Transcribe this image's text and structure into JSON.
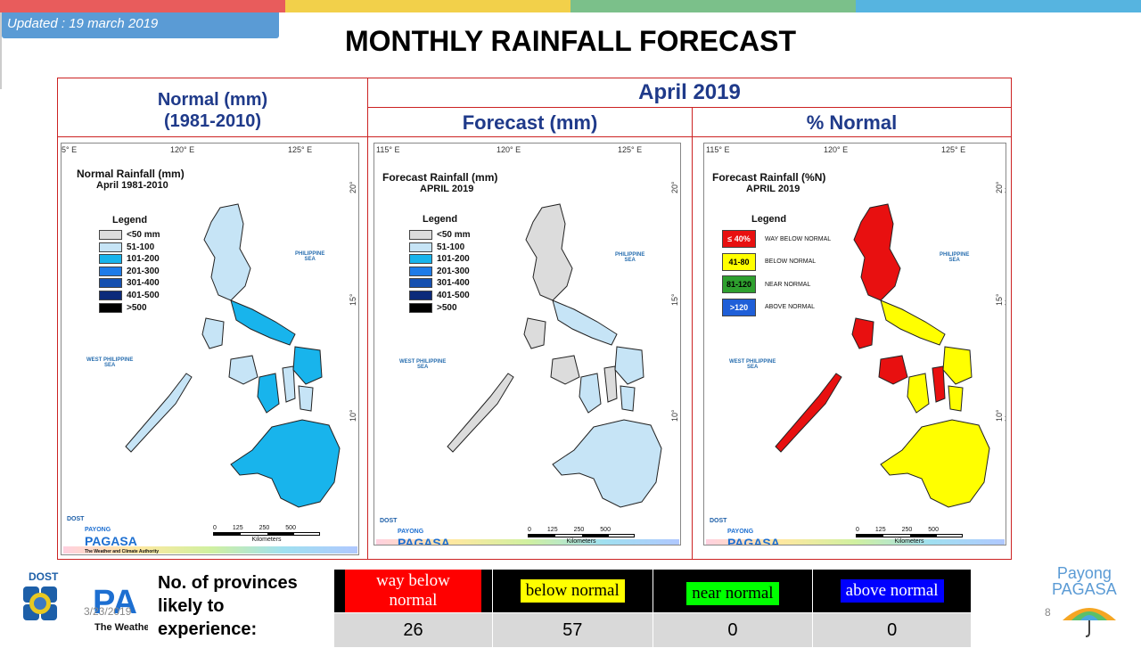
{
  "updated": "Updated : 19 march 2019",
  "title": "MONTHLY RAINFALL FORECAST",
  "headers": {
    "normal_line1": "Normal (mm)",
    "normal_line2": "(1981-2010)",
    "month": "April 2019",
    "forecast": "Forecast (mm)",
    "pct": "% Normal"
  },
  "maps": {
    "normal": {
      "title1": "Normal Rainfall (mm)",
      "title2": "April 1981-2010"
    },
    "forecast": {
      "title1": "Forecast Rainfall (mm)",
      "title2": "APRIL 2019"
    },
    "pct": {
      "title1": "Forecast Rainfall (%N)",
      "title2": "APRIL 2019"
    }
  },
  "coords": {
    "lon1": "115° E",
    "lon1_cut": "5° E",
    "lon2": "120° E",
    "lon3": "125° E",
    "lat1": "20° N",
    "lat2": "15° N",
    "lat3": "10° N"
  },
  "seas": {
    "ps1": "PHILIPPINE",
    "ps2": "SEA",
    "wps1": "WEST PHILIPPINE",
    "wps2": "SEA"
  },
  "legend_title": "Legend",
  "mm_legend": [
    {
      "label": "<50 mm",
      "color": "#dcdcdc"
    },
    {
      "label": "51-100",
      "color": "#c6e4f6"
    },
    {
      "label": "101-200",
      "color": "#18b4ec"
    },
    {
      "label": "201-300",
      "color": "#1e7be8"
    },
    {
      "label": "301-400",
      "color": "#1550b0"
    },
    {
      "label": "401-500",
      "color": "#0c2a7a"
    },
    {
      "label": ">500",
      "color": "#000000"
    }
  ],
  "mm_legend_forecast_first": "<50 mm",
  "pct_legend": [
    {
      "box": "≤ 40%",
      "label": "WAY BELOW NORMAL",
      "color": "#e81010",
      "text": "#ffffff"
    },
    {
      "box": "41-80",
      "label": "BELOW NORMAL",
      "color": "#ffff00",
      "text": "#000000"
    },
    {
      "box": "81-120",
      "label": "NEAR NORMAL",
      "color": "#2ea02e",
      "text": "#000000"
    },
    {
      "box": ">120",
      "label": "ABOVE NORMAL",
      "color": "#1f5fd8",
      "text": "#ffffff"
    }
  ],
  "scale": {
    "ticks": [
      "0",
      "125",
      "250",
      "500"
    ],
    "unit": "Kilometers"
  },
  "logo": {
    "dost": "DOST",
    "payong": "PAYONG",
    "pagasa": "PAGASA",
    "tagline": "The Weather and Climate Authority"
  },
  "bottom": {
    "label_line1": "No. of provinces",
    "label_line2": "likely  to",
    "label_line3": "experience:",
    "categories": [
      {
        "label": "way below normal",
        "bg": "#ff0000",
        "fg": "#ffffff"
      },
      {
        "label": "below normal",
        "bg": "#ffff00",
        "fg": "#000000"
      },
      {
        "label": "near normal",
        "bg": "#00ff00",
        "fg": "#000000"
      },
      {
        "label": "above normal",
        "bg": "#0000ff",
        "fg": "#ffffff"
      }
    ],
    "counts": [
      "26",
      "57",
      "0",
      "0"
    ]
  },
  "footer": {
    "date": "3/23/2019",
    "page": "8",
    "payong1": "Payong",
    "payong2": "PAGASA",
    "dost": "DOST",
    "pag_cut": "PA",
    "weath_cut": "The Weathe"
  },
  "colors": {
    "accent_red": "#cc2222",
    "header_blue": "#1f3a8a",
    "updated_bg": "#5a9bd5"
  }
}
